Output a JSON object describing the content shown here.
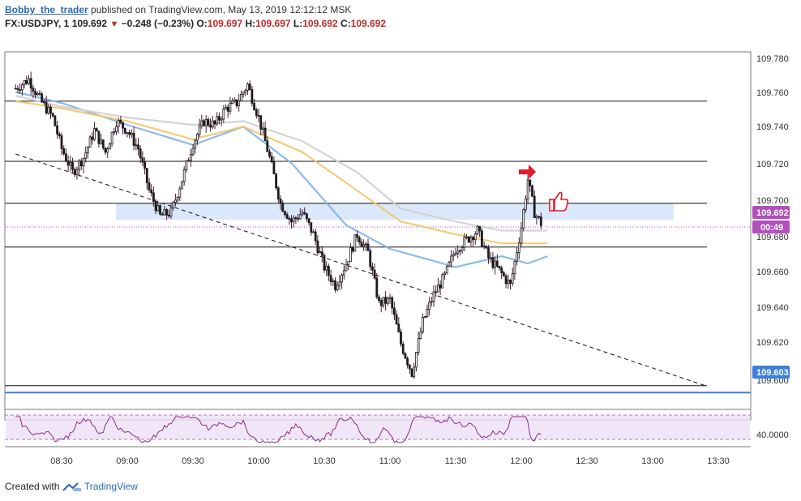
{
  "header": {
    "author": "Bobby_the_trader",
    "published": "published on TradingView.com, May 13, 2019 12:12:12 MSK",
    "symbol": "FX:USDJPY, 1",
    "last": "109.692",
    "change": "−0.248 (−0.23%)",
    "open_label": "O:",
    "open": "109.697",
    "high_label": "H:",
    "high": "109.697",
    "low_label": "L:",
    "low": "109.692",
    "close_label": "C:",
    "close": "109.692"
  },
  "price_axis": {
    "ticks": [
      "109.780",
      "109.760",
      "109.740",
      "109.720",
      "109.700",
      "109.680",
      "109.660",
      "109.640",
      "109.620",
      "109.600"
    ],
    "current_price_label": "109.692",
    "countdown_label": "00:49",
    "support_label": "109.603"
  },
  "rsi_axis": {
    "tick": "40.0000"
  },
  "time_axis": {
    "ticks": [
      "08:30",
      "09:00",
      "09:30",
      "10:00",
      "10:30",
      "11:00",
      "11:30",
      "12:00",
      "12:30",
      "13:00",
      "13:30"
    ]
  },
  "footer": {
    "prefix": "Created with",
    "brand": "TradingView"
  },
  "colors": {
    "up_candle": "#ffffff",
    "down_candle": "#1c1c1c",
    "wick": "#4a1a3a",
    "ema_fast": "#7fb2e6",
    "ema_mid": "#f1c76a",
    "ema_slow": "#cfcfcf",
    "zone": "#cfe0fb",
    "support_line": "#3d7fd9",
    "price_tag": "#b14fbc",
    "rsi_line": "#8a2d8a",
    "rsi_band": "#ede0f5",
    "annotation": "#e21b2a"
  },
  "chart_data": {
    "type": "candlestick",
    "symbol": "FX:USDJPY",
    "interval": "1",
    "ylim": [
      109.592,
      109.788
    ],
    "x_ticks": [
      "08:30",
      "09:00",
      "09:30",
      "10:00",
      "10:30",
      "11:00",
      "11:30",
      "12:00",
      "12:30",
      "13:00",
      "13:30"
    ],
    "horizontal_levels": [
      109.761,
      109.728,
      109.705,
      109.681,
      109.605
    ],
    "support_level": 109.603,
    "current_price": 109.692,
    "zone": [
      109.696,
      109.705
    ],
    "trendline": {
      "from": [
        "08:09",
        109.732
      ],
      "to": [
        "13:24",
        109.605
      ],
      "style": "dashed"
    },
    "price_path": [
      [
        "08:09",
        109.768
      ],
      [
        "08:15",
        109.773
      ],
      [
        "08:20",
        109.762
      ],
      [
        "08:26",
        109.752
      ],
      [
        "08:30",
        109.735
      ],
      [
        "08:35",
        109.722
      ],
      [
        "08:40",
        109.73
      ],
      [
        "08:45",
        109.745
      ],
      [
        "08:50",
        109.733
      ],
      [
        "08:55",
        109.75
      ],
      [
        "09:00",
        109.745
      ],
      [
        "09:05",
        109.735
      ],
      [
        "09:10",
        109.712
      ],
      [
        "09:15",
        109.698
      ],
      [
        "09:20",
        109.7
      ],
      [
        "09:25",
        109.718
      ],
      [
        "09:30",
        109.738
      ],
      [
        "09:35",
        109.75
      ],
      [
        "09:40",
        109.748
      ],
      [
        "09:45",
        109.757
      ],
      [
        "09:50",
        109.76
      ],
      [
        "09:55",
        109.77
      ],
      [
        "10:00",
        109.752
      ],
      [
        "10:05",
        109.73
      ],
      [
        "10:10",
        109.705
      ],
      [
        "10:15",
        109.695
      ],
      [
        "10:20",
        109.7
      ],
      [
        "10:25",
        109.688
      ],
      [
        "10:30",
        109.67
      ],
      [
        "10:35",
        109.66
      ],
      [
        "10:40",
        109.672
      ],
      [
        "10:45",
        109.688
      ],
      [
        "10:50",
        109.678
      ],
      [
        "10:55",
        109.65
      ],
      [
        "11:00",
        109.652
      ],
      [
        "11:05",
        109.628
      ],
      [
        "11:10",
        109.612
      ],
      [
        "11:15",
        109.64
      ],
      [
        "11:20",
        109.655
      ],
      [
        "11:25",
        109.665
      ],
      [
        "11:30",
        109.68
      ],
      [
        "11:35",
        109.685
      ],
      [
        "11:40",
        109.69
      ],
      [
        "11:45",
        109.675
      ],
      [
        "11:50",
        109.668
      ],
      [
        "11:55",
        109.66
      ],
      [
        "12:00",
        109.692
      ],
      [
        "12:03",
        109.718
      ],
      [
        "12:06",
        109.7
      ],
      [
        "12:10",
        109.692
      ]
    ],
    "moving_averages": [
      {
        "color": "#7fb2e6",
        "values": [
          [
            "08:09",
            109.766
          ],
          [
            "08:30",
            109.76
          ],
          [
            "09:00",
            109.748
          ],
          [
            "09:30",
            109.737
          ],
          [
            "09:53",
            109.747
          ],
          [
            "10:15",
            109.727
          ],
          [
            "10:40",
            109.693
          ],
          [
            "11:00",
            109.68
          ],
          [
            "11:30",
            109.67
          ],
          [
            "11:51",
            109.676
          ],
          [
            "12:03",
            109.672
          ],
          [
            "12:12",
            109.676
          ]
        ]
      },
      {
        "color": "#f1c76a",
        "values": [
          [
            "08:09",
            109.761
          ],
          [
            "08:30",
            109.757
          ],
          [
            "09:00",
            109.75
          ],
          [
            "09:30",
            109.74
          ],
          [
            "09:53",
            109.747
          ],
          [
            "10:20",
            109.733
          ],
          [
            "10:45",
            109.712
          ],
          [
            "11:05",
            109.695
          ],
          [
            "11:30",
            109.688
          ],
          [
            "11:51",
            109.683
          ],
          [
            "12:12",
            109.683
          ]
        ]
      },
      {
        "color": "#cfcfcf",
        "values": [
          [
            "08:09",
            109.764
          ],
          [
            "08:30",
            109.758
          ],
          [
            "09:00",
            109.752
          ],
          [
            "09:30",
            109.748
          ],
          [
            "09:53",
            109.75
          ],
          [
            "10:20",
            109.739
          ],
          [
            "10:45",
            109.722
          ],
          [
            "11:05",
            109.702
          ],
          [
            "11:30",
            109.695
          ],
          [
            "11:51",
            109.69
          ],
          [
            "12:12",
            109.69
          ]
        ]
      }
    ],
    "rsi": {
      "band": [
        30,
        70
      ],
      "tick": 40.0
    }
  }
}
